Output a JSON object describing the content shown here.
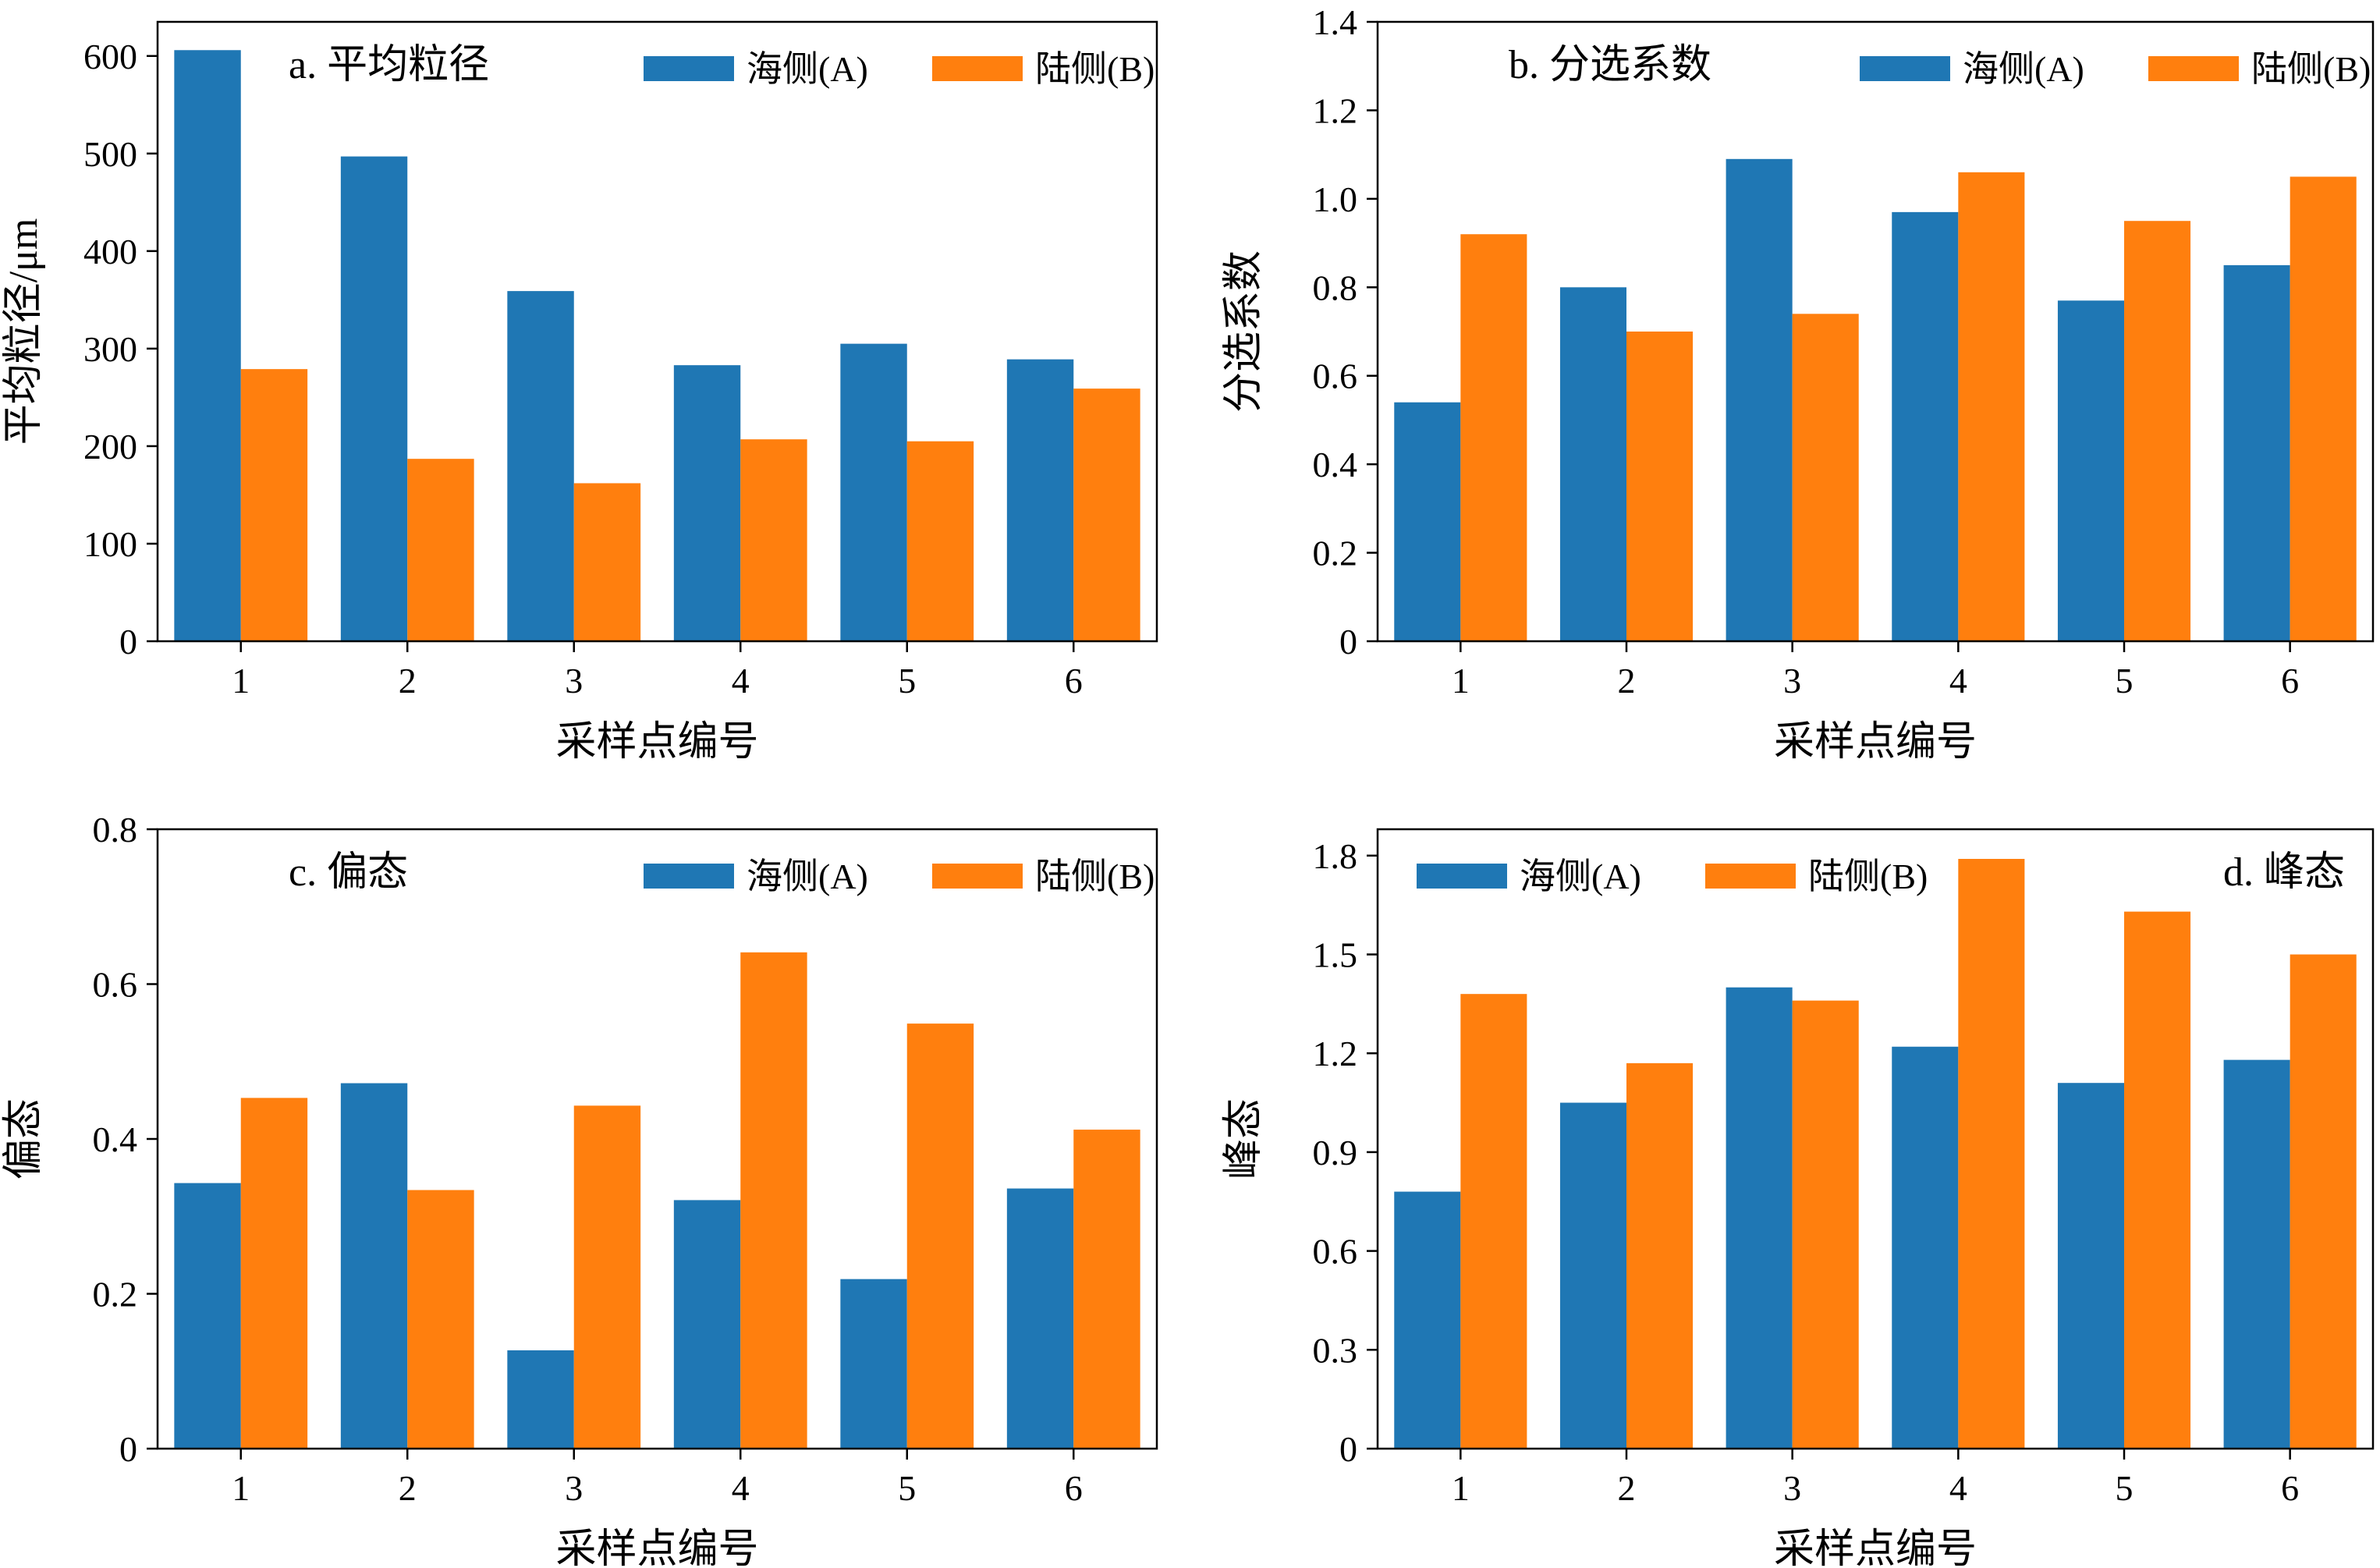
{
  "colors": {
    "series_a": "#1f77b4",
    "series_b": "#ff7f0e",
    "axis": "#000000"
  },
  "chart_data": [
    {
      "type": "bar",
      "panel_label": "a. 平均粒径",
      "title_position": "top-left",
      "legend_position": "top-right",
      "categories": [
        "1",
        "2",
        "3",
        "4",
        "5",
        "6"
      ],
      "series": [
        {
          "name": "海侧(A)",
          "values": [
            606,
            497,
            359,
            283,
            305,
            289
          ]
        },
        {
          "name": "陆侧(B)",
          "values": [
            279,
            187,
            162,
            207,
            205,
            259
          ]
        }
      ],
      "xlabel": "采样点编号",
      "ylabel": "平均粒径/μm",
      "ylim": [
        0,
        635
      ],
      "yticks": [
        0,
        100,
        200,
        300,
        400,
        500,
        600
      ],
      "ytick_labels": [
        "0",
        "100",
        "200",
        "300",
        "400",
        "500",
        "600"
      ],
      "grid": false
    },
    {
      "type": "bar",
      "panel_label": "b. 分选系数",
      "title_position": "top-left",
      "legend_position": "top-right",
      "categories": [
        "1",
        "2",
        "3",
        "4",
        "5",
        "6"
      ],
      "series": [
        {
          "name": "海侧(A)",
          "values": [
            0.54,
            0.8,
            1.09,
            0.97,
            0.77,
            0.85
          ]
        },
        {
          "name": "陆侧(B)",
          "values": [
            0.92,
            0.7,
            0.74,
            1.06,
            0.95,
            1.05
          ]
        }
      ],
      "xlabel": "采样点编号",
      "ylabel": "分选系数",
      "ylim": [
        0,
        1.4
      ],
      "yticks": [
        0,
        0.2,
        0.4,
        0.6,
        0.8,
        1.0,
        1.2,
        1.4
      ],
      "ytick_labels": [
        "0",
        "0.2",
        "0.4",
        "0.6",
        "0.8",
        "1.0",
        "1.2",
        "1.4"
      ],
      "grid": false
    },
    {
      "type": "bar",
      "panel_label": "c. 偏态",
      "title_position": "top-left",
      "legend_position": "top-right",
      "categories": [
        "1",
        "2",
        "3",
        "4",
        "5",
        "6"
      ],
      "series": [
        {
          "name": "海侧(A)",
          "values": [
            0.343,
            0.472,
            0.127,
            0.321,
            0.219,
            0.336
          ]
        },
        {
          "name": "陆侧(B)",
          "values": [
            0.453,
            0.334,
            0.443,
            0.641,
            0.549,
            0.412
          ]
        }
      ],
      "xlabel": "采样点编号",
      "ylabel": "偏态",
      "ylim": [
        0,
        0.8
      ],
      "yticks": [
        0,
        0.2,
        0.4,
        0.6,
        0.8
      ],
      "ytick_labels": [
        "0",
        "0.2",
        "0.4",
        "0.6",
        "0.8"
      ],
      "grid": false
    },
    {
      "type": "bar",
      "panel_label": "d. 峰态",
      "title_position": "top-right",
      "legend_position": "top-left",
      "categories": [
        "1",
        "2",
        "3",
        "4",
        "5",
        "6"
      ],
      "series": [
        {
          "name": "海侧(A)",
          "values": [
            0.78,
            1.05,
            1.4,
            1.22,
            1.11,
            1.18
          ]
        },
        {
          "name": "陆侧(B)",
          "values": [
            1.38,
            1.17,
            1.36,
            1.79,
            1.63,
            1.5
          ]
        }
      ],
      "xlabel": "采样点编号",
      "ylabel": "峰态",
      "ylim": [
        0,
        1.88
      ],
      "yticks": [
        0,
        0.3,
        0.6,
        0.9,
        1.2,
        1.5,
        1.8
      ],
      "ytick_labels": [
        "0",
        "0.3",
        "0.6",
        "0.9",
        "1.2",
        "1.5",
        "1.8"
      ],
      "grid": false
    }
  ]
}
